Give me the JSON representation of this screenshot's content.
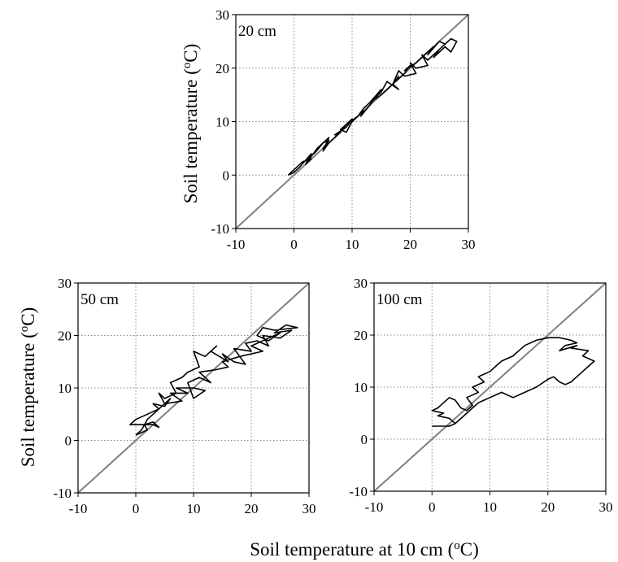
{
  "figure": {
    "ylabel_prefix": "Soil temperature (",
    "ylabel_sup": "o",
    "ylabel_suffix": "C)",
    "xlabel_prefix": "Soil temperature at 10 cm (",
    "xlabel_sup": "o",
    "xlabel_suffix": "C)"
  },
  "chart_data": [
    {
      "type": "line",
      "panel_label": "20 cm",
      "xlim": [
        -10,
        30
      ],
      "ylim": [
        -10,
        30
      ],
      "xticks": [
        -10,
        0,
        10,
        20,
        30
      ],
      "yticks": [
        -10,
        0,
        10,
        20,
        30
      ],
      "grid": true,
      "series": [
        {
          "style": "reference",
          "color": "#808080",
          "x": [
            -10,
            30
          ],
          "y": [
            -10,
            30
          ]
        },
        {
          "style": "trace",
          "color": "#000000",
          "x": [
            -1,
            0,
            1.5,
            3,
            2,
            4,
            3.5,
            5,
            6,
            5,
            7,
            8,
            7,
            9,
            10,
            9,
            11,
            12,
            11.5,
            13,
            14,
            13,
            15,
            16,
            15,
            17,
            18,
            17.5,
            19,
            20,
            19,
            21,
            22,
            21,
            23,
            24,
            23,
            25,
            26,
            25,
            27,
            28,
            27,
            26,
            24,
            25,
            23,
            22,
            23,
            21,
            20,
            21,
            19,
            18,
            17,
            18,
            16,
            15,
            14,
            15,
            13,
            12,
            11,
            12,
            10,
            9,
            8,
            9,
            7,
            6,
            5,
            6,
            4,
            3,
            2,
            3,
            1,
            0,
            -1
          ],
          "y": [
            0,
            1,
            2.5,
            3,
            2,
            5,
            4,
            6,
            6.5,
            5,
            7,
            8,
            7.5,
            9,
            10.5,
            9.5,
            11,
            12,
            11,
            13,
            14.5,
            13.5,
            15,
            16,
            15,
            17,
            18.5,
            17.5,
            19,
            20.5,
            19.5,
            21,
            22,
            21,
            23,
            24,
            22.5,
            25,
            24.5,
            23.5,
            25.5,
            25,
            23,
            24,
            22,
            23.5,
            21.5,
            22.5,
            20.5,
            20,
            21,
            19,
            18.5,
            19.5,
            17,
            16,
            17.5,
            15.5,
            14.5,
            16,
            13.5,
            12.5,
            11,
            12,
            10,
            8,
            8.5,
            9.5,
            7,
            6,
            4.5,
            7,
            5,
            3.5,
            2,
            4,
            1.5,
            0.5,
            0
          ]
        }
      ]
    },
    {
      "type": "line",
      "panel_label": "50 cm",
      "xlim": [
        -10,
        30
      ],
      "ylim": [
        -10,
        30
      ],
      "xticks": [
        -10,
        0,
        10,
        20,
        30
      ],
      "yticks": [
        -10,
        0,
        10,
        20,
        30
      ],
      "grid": true,
      "series": [
        {
          "style": "reference",
          "color": "#808080",
          "x": [
            -10,
            30
          ],
          "y": [
            -10,
            30
          ]
        },
        {
          "style": "trace",
          "color": "#000000",
          "x": [
            0,
            1,
            2,
            1.5,
            3,
            4,
            3,
            -1,
            0,
            2,
            4,
            3,
            5,
            6,
            5,
            8,
            6,
            9,
            7,
            10,
            12,
            10,
            9,
            11,
            13,
            11,
            14,
            16,
            15,
            18,
            17,
            20,
            19,
            21,
            23,
            22,
            25,
            27,
            24,
            26,
            28,
            24,
            22,
            21,
            23,
            25,
            20,
            22,
            18,
            19,
            17,
            15,
            16,
            13,
            14,
            12,
            10,
            11,
            9,
            8,
            6,
            7,
            5,
            4,
            5,
            3,
            2,
            1,
            0
          ],
          "y": [
            1,
            1.5,
            2,
            3,
            3.5,
            2.5,
            3,
            3,
            4,
            5,
            6,
            7,
            6.5,
            8,
            7,
            7.5,
            9,
            9,
            10,
            10,
            9.5,
            8,
            11,
            12,
            11,
            13,
            13.5,
            14,
            15,
            16,
            17.5,
            17,
            18.5,
            19,
            18,
            20,
            19.5,
            21,
            20.5,
            22,
            21.5,
            21,
            21.5,
            20,
            19,
            20.5,
            18,
            17,
            16,
            14.5,
            15,
            16.5,
            15,
            17,
            18,
            16,
            17,
            14,
            13,
            12,
            11,
            9,
            8,
            9,
            7,
            5,
            4,
            2,
            1
          ]
        }
      ]
    },
    {
      "type": "line",
      "panel_label": "100 cm",
      "xlim": [
        -10,
        30
      ],
      "ylim": [
        -10,
        30
      ],
      "xticks": [
        -10,
        0,
        10,
        20,
        30
      ],
      "yticks": [
        -10,
        0,
        10,
        20,
        30
      ],
      "grid": true,
      "series": [
        {
          "style": "reference",
          "color": "#808080",
          "x": [
            -10,
            30
          ],
          "y": [
            -10,
            30
          ]
        },
        {
          "style": "trace",
          "color": "#000000",
          "x": [
            0,
            1,
            2,
            3,
            4,
            3,
            1,
            2,
            0,
            1,
            2,
            3,
            4,
            5,
            6,
            7,
            6,
            8,
            7,
            9,
            8,
            10,
            11,
            12,
            14,
            15,
            16,
            18,
            20,
            22,
            24,
            25,
            23,
            22,
            25,
            24,
            27,
            26,
            28,
            27,
            26,
            25,
            24,
            23,
            22,
            21,
            20,
            18,
            17,
            16,
            15,
            14,
            13,
            12,
            11,
            10,
            9,
            8,
            7,
            6,
            5,
            4,
            3,
            2
          ],
          "y": [
            2.5,
            2.5,
            2.5,
            2.5,
            3,
            4,
            4.5,
            5,
            5.5,
            6,
            7,
            8,
            7.5,
            6,
            5.5,
            6.5,
            8,
            9,
            10,
            11,
            12,
            13,
            14,
            15,
            16,
            17,
            18,
            19,
            19.5,
            19.5,
            19,
            18.5,
            18,
            17,
            18,
            17.5,
            17,
            16,
            15,
            14,
            13,
            12,
            11,
            10.5,
            11,
            12,
            11.5,
            10,
            9.5,
            9,
            8.5,
            8,
            8.5,
            9,
            8.5,
            8,
            7.5,
            7,
            6,
            5,
            4,
            3,
            2.5,
            2.5
          ]
        }
      ]
    }
  ]
}
